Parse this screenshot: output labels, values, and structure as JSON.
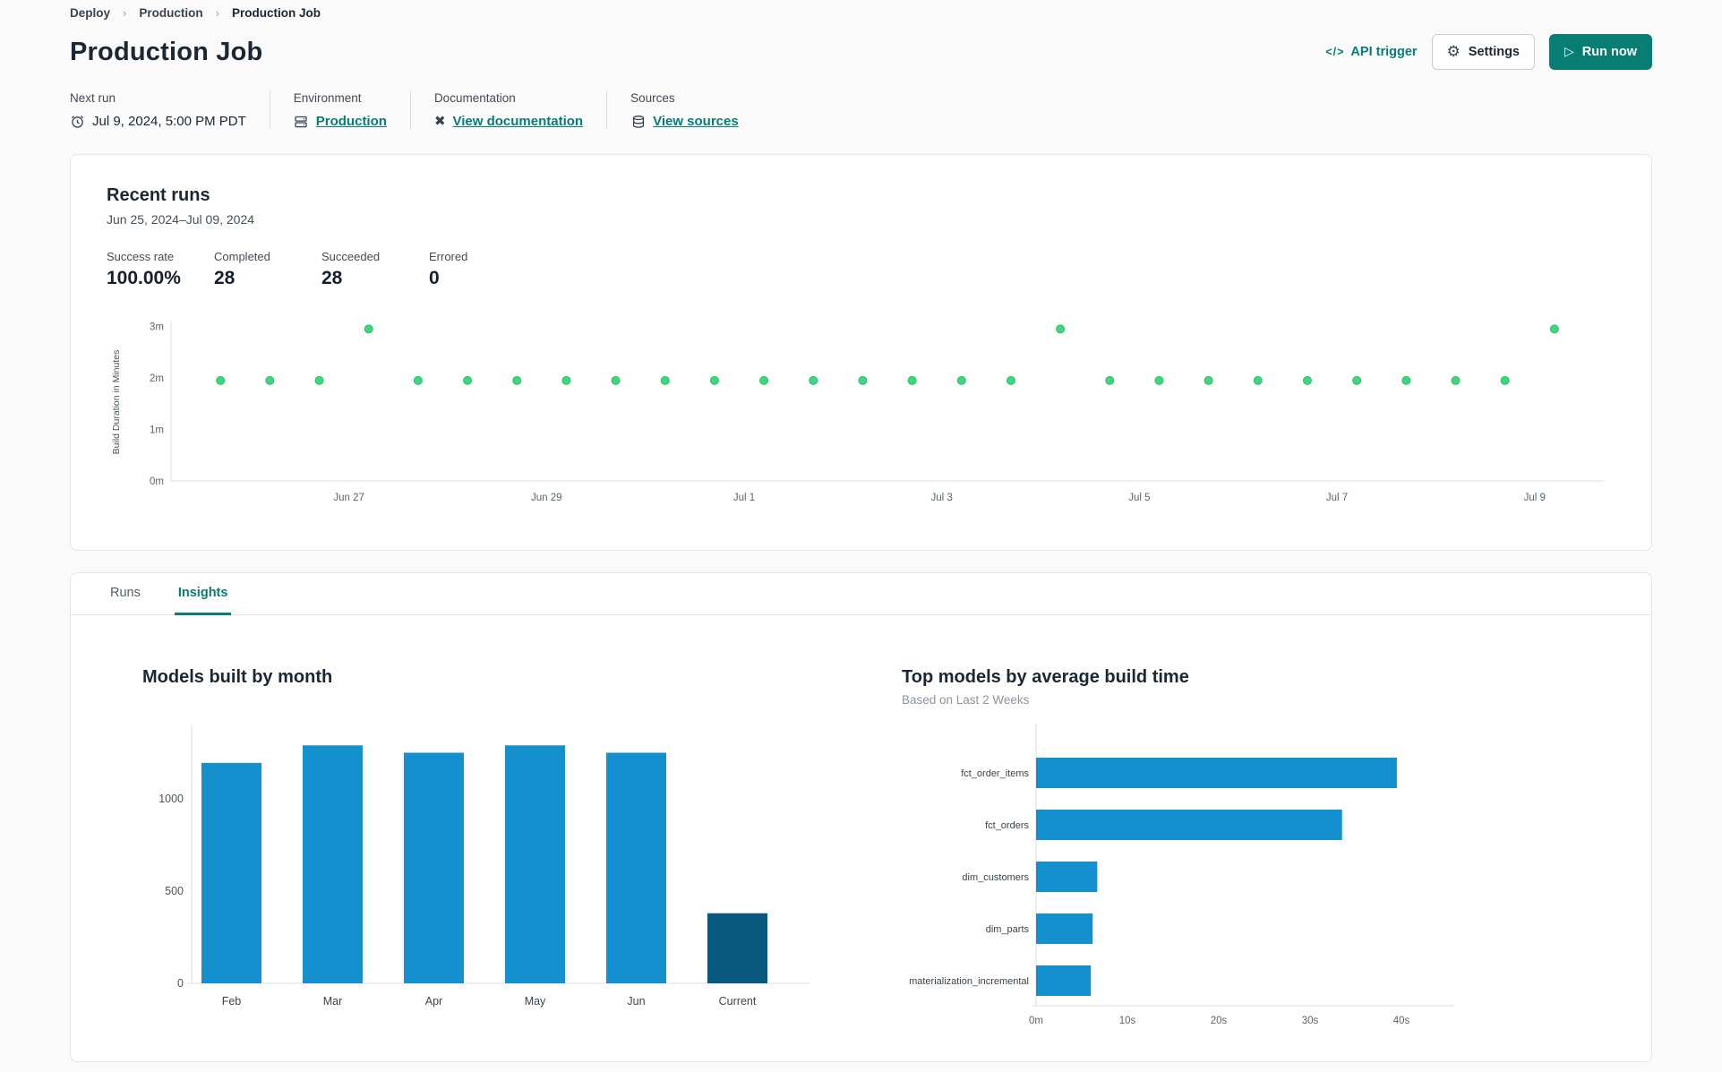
{
  "breadcrumb": {
    "separator": "›",
    "items": [
      {
        "label": "Deploy"
      },
      {
        "label": "Production"
      },
      {
        "label": "Production Job"
      }
    ]
  },
  "header": {
    "title": "Production Job",
    "api_trigger": {
      "label": "API trigger",
      "icon": "code-brackets-icon",
      "glyph": "</>"
    },
    "settings": {
      "label": "Settings",
      "icon": "gear-icon",
      "glyph": "⚙"
    },
    "run_now": {
      "label": "Run now",
      "icon": "play-icon",
      "glyph": "▷"
    }
  },
  "job_meta": {
    "next_run": {
      "label": "Next run",
      "value": "Jul 9, 2024, 5:00 PM PDT",
      "icon": "alarm-clock-icon"
    },
    "environment": {
      "label": "Environment",
      "value": "Production",
      "icon": "environment-database-icon"
    },
    "documentation": {
      "label": "Documentation",
      "value": "View documentation",
      "icon": "dbt-docs-icon",
      "glyph": "✖"
    },
    "sources": {
      "label": "Sources",
      "value": "View sources",
      "icon": "sources-database-icon"
    }
  },
  "recent_runs": {
    "title": "Recent runs",
    "date_range": "Jun 25, 2024–Jul 09, 2024",
    "stats": [
      {
        "label": "Success rate",
        "value": "100.00%"
      },
      {
        "label": "Completed",
        "value": "28"
      },
      {
        "label": "Succeeded",
        "value": "28"
      },
      {
        "label": "Errored",
        "value": "0"
      }
    ]
  },
  "tabs": [
    {
      "label": "Runs",
      "active": false
    },
    {
      "label": "Insights",
      "active": true
    }
  ],
  "insights": {
    "models_by_month_title": "Models built by month",
    "top_models_title": "Top models by average build time",
    "top_models_subtitle": "Based on Last 2 Weeks"
  },
  "colors": {
    "accent_teal": "#077d73",
    "scatter_green": "#40d57f",
    "bar_blue": "#1590cf",
    "bar_dark_blue": "#09597f",
    "axis_line": "#d9dce1",
    "tick_text": "#5a646e"
  },
  "chart_data": [
    {
      "id": "build-duration-scatter",
      "type": "scatter",
      "ylabel": "Build Duration in Minutes",
      "y_ticks": [
        {
          "label": "0m",
          "value": 0
        },
        {
          "label": "1m",
          "value": 1
        },
        {
          "label": "2m",
          "value": 2
        },
        {
          "label": "3m",
          "value": 3
        }
      ],
      "ylim": [
        0,
        3.1
      ],
      "x_tick_labels": [
        "Jun 27",
        "Jun 29",
        "Jul 1",
        "Jul 3",
        "Jul 5",
        "Jul 7",
        "Jul 9"
      ],
      "point_color": "#40d57f",
      "point_edge": "#2bbf6c",
      "points_minutes": [
        1.95,
        1.95,
        1.95,
        2.95,
        1.95,
        1.95,
        1.95,
        1.95,
        1.95,
        1.95,
        1.95,
        1.95,
        1.95,
        1.95,
        1.95,
        1.95,
        1.95,
        2.95,
        1.95,
        1.95,
        1.95,
        1.95,
        1.95,
        1.95,
        1.95,
        1.95,
        1.95,
        2.95
      ]
    },
    {
      "id": "models-built-by-month",
      "type": "bar",
      "title": "Models built by month",
      "categories": [
        "Feb",
        "Mar",
        "Apr",
        "May",
        "Jun",
        "Current"
      ],
      "values": [
        1195,
        1290,
        1250,
        1290,
        1250,
        380
      ],
      "bar_color": "#1590cf",
      "highlight_index": 5,
      "highlight_color": "#09597f",
      "y_ticks": [
        0,
        500,
        1000
      ],
      "ylim": [
        0,
        1400
      ]
    },
    {
      "id": "top-models-by-build-time",
      "type": "hbar",
      "title": "Top models by average build time",
      "subtitle": "Based on Last 2 Weeks",
      "categories": [
        "fct_order_items",
        "fct_orders",
        "dim_customers",
        "dim_parts",
        "materialization_incremental"
      ],
      "values_seconds": [
        39.5,
        33.5,
        6.7,
        6.2,
        6.0
      ],
      "x_ticks": [
        {
          "label": "0m",
          "value": 0
        },
        {
          "label": "10s",
          "value": 10
        },
        {
          "label": "20s",
          "value": 20
        },
        {
          "label": "30s",
          "value": 30
        },
        {
          "label": "40s",
          "value": 40
        }
      ],
      "xlim": [
        0,
        45
      ],
      "bar_color": "#1590cf"
    }
  ]
}
